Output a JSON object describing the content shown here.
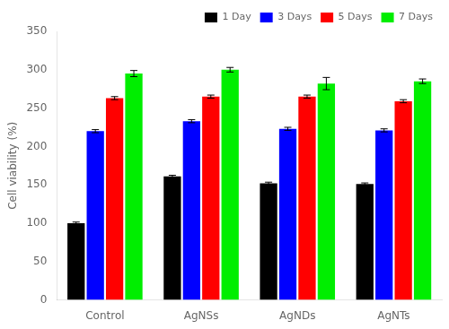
{
  "chart_data": {
    "type": "bar",
    "categories": [
      "Control",
      "AgNSs",
      "AgNDs",
      "AgNTs"
    ],
    "series": [
      {
        "name": "1 Day",
        "color": "#000000",
        "values": [
          100,
          161,
          152,
          151
        ],
        "errors": [
          1.5,
          1.5,
          1.5,
          1.5
        ]
      },
      {
        "name": "3 Days",
        "color": "#0000ff",
        "values": [
          220,
          233,
          223,
          221
        ],
        "errors": [
          2,
          2,
          2,
          2
        ]
      },
      {
        "name": "5 Days",
        "color": "#ff0000",
        "values": [
          263,
          265,
          265,
          259
        ],
        "errors": [
          2,
          2,
          2,
          2
        ]
      },
      {
        "name": "7 Days",
        "color": "#00ee00",
        "values": [
          295,
          300,
          282,
          285
        ],
        "errors": [
          4,
          3,
          8,
          3
        ]
      }
    ],
    "ylabel": "Cell viability (%)",
    "ylim": [
      0,
      350
    ],
    "yticks": [
      0,
      50,
      100,
      150,
      200,
      250,
      300,
      350
    ],
    "grid": false,
    "legend": "upper right"
  }
}
